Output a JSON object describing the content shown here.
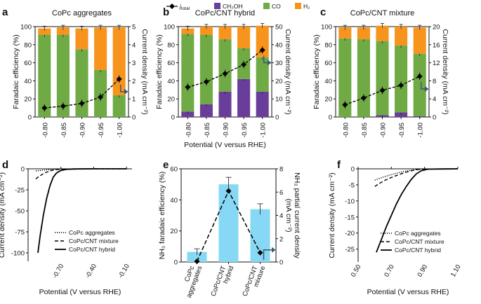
{
  "legend": {
    "jtotal": "j",
    "jtotal_sub": "total",
    "ch3oh": "CH₃OH",
    "co": "CO",
    "h2": "H₂"
  },
  "colors": {
    "ch3oh": "#6a3d9a",
    "co": "#6faa45",
    "h2": "#f7941d",
    "line": "#000000",
    "lightblue": "#87d8f5",
    "arrow": "#3a5a6f"
  },
  "chart_data": [
    {
      "panel": "a",
      "type": "bar",
      "title": "CoPc aggregates",
      "categories": [
        "-0.80",
        "-0.85",
        "-0.90",
        "-0.95",
        "-1.00"
      ],
      "series": [
        {
          "name": "CH₃OH",
          "values": [
            0,
            0,
            0,
            0,
            0
          ]
        },
        {
          "name": "CO",
          "values": [
            91,
            91,
            75,
            52,
            24
          ]
        },
        {
          "name": "H₂",
          "values": [
            7,
            8,
            23,
            47,
            75
          ]
        }
      ],
      "jtotal": [
        0.5,
        0.6,
        0.75,
        1.1,
        2.1
      ],
      "xlabel": "",
      "ylabel": "Faradaic efficiency (%)",
      "ylim": [
        0,
        100
      ],
      "y2label": "Current density (mA cm⁻²)",
      "y2lim": [
        0,
        5
      ],
      "yticks": [
        "0",
        "20",
        "40",
        "60",
        "80",
        "100"
      ],
      "y2ticks": [
        "0",
        "1",
        "2",
        "3",
        "4",
        "5"
      ]
    },
    {
      "panel": "b",
      "type": "bar",
      "title": "CoPc/CNT hybrid",
      "categories": [
        "-0.80",
        "-0.85",
        "-0.90",
        "-0.95",
        "-1.00"
      ],
      "series": [
        {
          "name": "CH₃OH",
          "values": [
            6,
            14,
            28,
            42,
            28
          ]
        },
        {
          "name": "CO",
          "values": [
            86,
            77,
            58,
            34,
            38
          ]
        },
        {
          "name": "H₂",
          "values": [
            6,
            9,
            14,
            24,
            35
          ]
        }
      ],
      "jtotal": [
        16.5,
        19.5,
        24,
        29,
        37
      ],
      "xlabel": "Potential (V versus RHE)",
      "ylabel": "Faradaic efficiency (%)",
      "ylim": [
        0,
        100
      ],
      "y2label": "Current density (mA cm⁻²)",
      "y2lim": [
        0,
        50
      ],
      "yticks": [
        "0",
        "20",
        "40",
        "60",
        "80",
        "100"
      ],
      "y2ticks": [
        "0",
        "10",
        "20",
        "30",
        "40",
        "50"
      ]
    },
    {
      "panel": "c",
      "type": "bar",
      "title": "CoPc/CNT mixture",
      "categories": [
        "-0.80",
        "-0.85",
        "-0.90",
        "-0.95",
        "-1.00"
      ],
      "series": [
        {
          "name": "CH₃OH",
          "values": [
            0,
            0,
            2,
            5,
            1
          ]
        },
        {
          "name": "CO",
          "values": [
            87,
            86,
            82,
            74,
            69
          ]
        },
        {
          "name": "H₂",
          "values": [
            12,
            13,
            17,
            21,
            29
          ]
        }
      ],
      "jtotal": [
        2.7,
        4.2,
        5.9,
        7.0,
        9.0
      ],
      "xlabel": "",
      "ylabel": "Faradaic efficiency (%)",
      "ylim": [
        0,
        100
      ],
      "y2label": "Current density (mA cm⁻²)",
      "y2lim": [
        0,
        20
      ],
      "yticks": [
        "0",
        "20",
        "40",
        "60",
        "80",
        "100"
      ],
      "y2ticks": [
        "0",
        "4",
        "8",
        "12",
        "16",
        "20"
      ]
    },
    {
      "panel": "d",
      "type": "line",
      "xlabel": "Potential (V versus RHE)",
      "ylabel": "Current density (mA cm⁻²)",
      "xlim": [
        -1.0,
        -0.05
      ],
      "ylim": [
        -110,
        0
      ],
      "xticks": [
        "-0.70",
        "-0.40",
        "-0.10"
      ],
      "xtick_values": [
        -0.7,
        -0.4,
        -0.1
      ],
      "yticks": [
        "0",
        "-25",
        "-50",
        "-75",
        "-100"
      ],
      "ytick_values": [
        0,
        -25,
        -50,
        -75,
        -100
      ],
      "series": [
        {
          "name": "CoPc aggregates",
          "style": "dotted",
          "x": [
            -0.93,
            -0.88,
            -0.83,
            -0.78,
            -0.7,
            -0.6,
            -0.1
          ],
          "y": [
            -2.5,
            -1.8,
            -1.2,
            -0.7,
            -0.3,
            -0.1,
            0
          ]
        },
        {
          "name": "CoPc/CNT mixture",
          "style": "dashed",
          "x": [
            -0.93,
            -0.9,
            -0.87,
            -0.84,
            -0.8,
            -0.76,
            -0.7,
            -0.6,
            -0.1
          ],
          "y": [
            -12,
            -9,
            -6.5,
            -4.5,
            -2.5,
            -1.2,
            -0.5,
            -0.1,
            0
          ]
        },
        {
          "name": "CoPc/CNT hybrid",
          "style": "solid",
          "x": [
            -0.91,
            -0.89,
            -0.86,
            -0.83,
            -0.8,
            -0.77,
            -0.74,
            -0.7,
            -0.65,
            -0.55,
            -0.4,
            -0.1
          ],
          "y": [
            -100,
            -80,
            -55,
            -35,
            -20,
            -10,
            -5,
            -2,
            -0.6,
            -0.2,
            0,
            0
          ]
        }
      ],
      "legend_entries": [
        "CoPc aggregates",
        "CoPc/CNT mixture",
        "CoPc/CNT hybrid"
      ]
    },
    {
      "panel": "e",
      "type": "bar",
      "categories": [
        "CoPc aggregates",
        "CoPc/CNT hybrid",
        "CoPc/CNT mixture"
      ],
      "category_lines": [
        [
          "CoPc",
          "aggregates"
        ],
        [
          "CoPc/CNT",
          "hybrid"
        ],
        [
          "CoPc/CNT",
          "mixture"
        ]
      ],
      "values": [
        6.5,
        50,
        34
      ],
      "errors": [
        2,
        4.5,
        3.5
      ],
      "partial_current": [
        0.05,
        6.1,
        0.8
      ],
      "ylabel": "NH₃ faradaic efficiency (%)",
      "ylim": [
        0,
        60
      ],
      "y2label": "NH₃ partial current density (mA cm⁻²)",
      "y2lim": [
        0,
        8
      ],
      "yticks": [
        "0",
        "20",
        "40",
        "60"
      ],
      "y2ticks": [
        "0",
        "2",
        "4",
        "6",
        "8"
      ]
    },
    {
      "panel": "f",
      "type": "line",
      "xlabel": "Potential (V versus RHE)",
      "ylabel": "Current density (mA cm⁻²)",
      "xlim": [
        0.5,
        1.1
      ],
      "ylim": [
        -29,
        0
      ],
      "xticks": [
        "0.50",
        "0.70",
        "0.90",
        "1.10"
      ],
      "xtick_values": [
        0.5,
        0.7,
        0.9,
        1.1
      ],
      "yticks": [
        "0",
        "-5",
        "-10",
        "-15",
        "-20",
        "-25"
      ],
      "ytick_values": [
        0,
        -5,
        -10,
        -15,
        -20,
        -25
      ],
      "series": [
        {
          "name": "CoPc aggregates",
          "style": "dotted",
          "x": [
            0.6,
            0.65,
            0.7,
            0.75,
            0.8,
            0.85,
            0.9,
            1.1
          ],
          "y": [
            -3.5,
            -2.6,
            -1.8,
            -1.1,
            -0.6,
            -0.2,
            -0.05,
            0
          ]
        },
        {
          "name": "CoPc/CNT mixture",
          "style": "dashed",
          "x": [
            0.6,
            0.63,
            0.66,
            0.7,
            0.74,
            0.78,
            0.82,
            0.86,
            0.9,
            1.1
          ],
          "y": [
            -5.5,
            -4.5,
            -3.6,
            -2.7,
            -1.9,
            -1.2,
            -0.6,
            -0.2,
            -0.05,
            0
          ]
        },
        {
          "name": "CoPc/CNT hybrid",
          "style": "solid",
          "x": [
            0.61,
            0.64,
            0.67,
            0.7,
            0.73,
            0.76,
            0.79,
            0.82,
            0.85,
            0.88,
            0.92,
            1.1
          ],
          "y": [
            -26,
            -22,
            -18,
            -14.5,
            -11,
            -8,
            -5.5,
            -3.3,
            -1.6,
            -0.6,
            -0.1,
            0
          ]
        }
      ],
      "legend_entries": [
        "CoPc aggregates",
        "CoPc/CNT mixture",
        "CoPc/CNT hybrid"
      ]
    }
  ]
}
